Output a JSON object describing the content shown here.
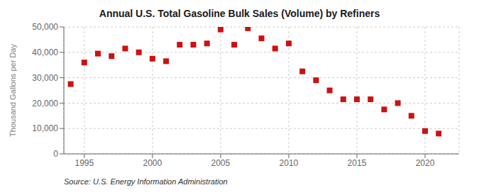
{
  "chart_data": {
    "type": "scatter",
    "title": "Annual U.S. Total Gasoline Bulk Sales (Volume) by Refiners",
    "ylabel": "Thousand Gallons per Day",
    "annotation": "Source: U.S. Energy Information Administration",
    "x": [
      1994,
      1995,
      1996,
      1997,
      1998,
      1999,
      2000,
      2001,
      2002,
      2003,
      2004,
      2005,
      2006,
      2007,
      2008,
      2009,
      2010,
      2011,
      2012,
      2013,
      2014,
      2015,
      2016,
      2017,
      2018,
      2019,
      2020,
      2021
    ],
    "values": [
      27500,
      36000,
      39500,
      38500,
      41500,
      40000,
      37500,
      36500,
      43000,
      43000,
      43500,
      49000,
      43000,
      49500,
      45500,
      41500,
      43500,
      32500,
      29000,
      25000,
      21500,
      21500,
      21500,
      17500,
      20000,
      15000,
      9000,
      8000
    ],
    "color": "#cc1111",
    "marker": "square",
    "xlim": [
      1993.5,
      2022.5
    ],
    "xticks": [
      1995,
      2000,
      2005,
      2010,
      2015,
      2020
    ],
    "ylim": [
      0,
      50000
    ],
    "yticks": [
      0,
      {
        "value": 10000,
        "label": "10,000"
      },
      {
        "value": 20000,
        "label": "20,000"
      },
      {
        "value": 30000,
        "label": "30,000"
      },
      {
        "value": 40000,
        "label": "40,000"
      },
      {
        "value": 50000,
        "label": "50,000"
      }
    ],
    "grid": true
  }
}
